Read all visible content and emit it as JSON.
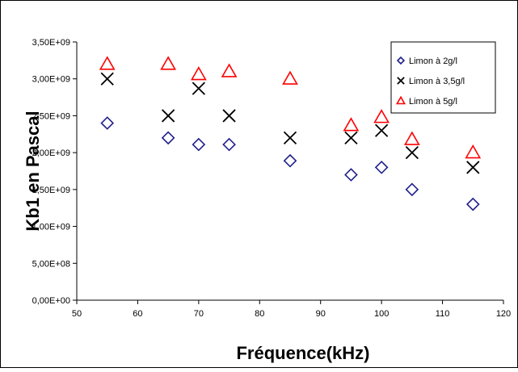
{
  "chart_data": {
    "type": "scatter",
    "title": "",
    "xlabel": "Fréquence(kHz)",
    "ylabel": "Kb1 en Pascal",
    "xlim": [
      50,
      120
    ],
    "ylim": [
      0,
      3500000000
    ],
    "x_ticks": [
      50,
      60,
      70,
      80,
      90,
      100,
      110,
      120
    ],
    "x_tick_labels": [
      "50",
      "60",
      "70",
      "80",
      "90",
      "100",
      "110",
      "120"
    ],
    "y_ticks": [
      0,
      500000000,
      1000000000,
      1500000000,
      2000000000,
      2500000000,
      3000000000,
      3500000000
    ],
    "y_tick_labels": [
      "0,00E+00",
      "5,00E+08",
      "1,00E+09",
      "1,50E+09",
      "2,00E+09",
      "2,50E+09",
      "3,00E+09",
      "3,50E+09"
    ],
    "grid": false,
    "legend_position": "top-right",
    "series": [
      {
        "name": "Limon à 2g/l",
        "marker": "diamond",
        "color": "#1F1F8C",
        "points": [
          {
            "x": 55,
            "y": 2400000000
          },
          {
            "x": 65,
            "y": 2200000000
          },
          {
            "x": 70,
            "y": 2110000000
          },
          {
            "x": 75,
            "y": 2110000000
          },
          {
            "x": 85,
            "y": 1890000000
          },
          {
            "x": 95,
            "y": 1700000000
          },
          {
            "x": 100,
            "y": 1800000000
          },
          {
            "x": 105,
            "y": 1500000000
          },
          {
            "x": 115,
            "y": 1300000000
          }
        ]
      },
      {
        "name": "Limon à 3,5g/l",
        "marker": "x",
        "color": "#000000",
        "points": [
          {
            "x": 55,
            "y": 3000000000
          },
          {
            "x": 65,
            "y": 2500000000
          },
          {
            "x": 70,
            "y": 2870000000
          },
          {
            "x": 75,
            "y": 2500000000
          },
          {
            "x": 85,
            "y": 2200000000
          },
          {
            "x": 95,
            "y": 2200000000
          },
          {
            "x": 100,
            "y": 2300000000
          },
          {
            "x": 105,
            "y": 2000000000
          },
          {
            "x": 115,
            "y": 1800000000
          }
        ]
      },
      {
        "name": "Limon à 5g/l",
        "marker": "triangle",
        "color": "#FF0000",
        "points": [
          {
            "x": 55,
            "y": 3200000000
          },
          {
            "x": 65,
            "y": 3200000000
          },
          {
            "x": 70,
            "y": 3060000000
          },
          {
            "x": 75,
            "y": 3100000000
          },
          {
            "x": 85,
            "y": 3000000000
          },
          {
            "x": 95,
            "y": 2370000000
          },
          {
            "x": 100,
            "y": 2480000000
          },
          {
            "x": 105,
            "y": 2180000000
          },
          {
            "x": 115,
            "y": 2000000000
          }
        ]
      }
    ]
  }
}
